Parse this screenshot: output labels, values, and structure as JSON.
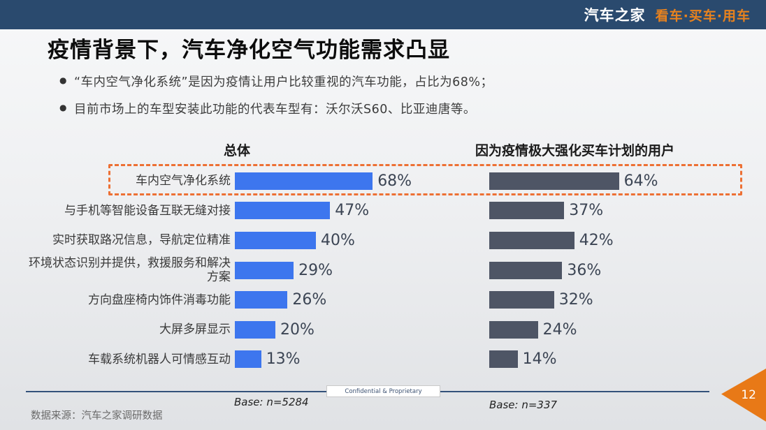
{
  "header": {
    "brand": "汽车之家",
    "tagline": "看车·买车·用车",
    "bar_color": "#2a4a6e",
    "accent_color": "#e8821e"
  },
  "title": "疫情背景下，汽车净化空气功能需求凸显",
  "bullets": [
    "“车内空气净化系统”是因为疫情让用户比较重视的汽车功能，占比为68%；",
    "目前市场上的车型安装此功能的代表车型有：沃尔沃S60、比亚迪唐等。"
  ],
  "chart_data": {
    "type": "bar",
    "orientation": "horizontal",
    "value_suffix": "%",
    "categories": [
      "车内空气净化系统",
      "与手机等智能设备互联无缝对接",
      "实时获取路况信息，导航定位精准",
      "环境状态识别并提供，救援服务和解决方案",
      "方向盘座椅内饰件消毒功能",
      "大屏多屏显示",
      "车载系统机器人可情感互动"
    ],
    "series": [
      {
        "name": "总体",
        "values": [
          68,
          47,
          40,
          29,
          26,
          20,
          13
        ],
        "color": "#3d76ee",
        "base": "Base: n=5284"
      },
      {
        "name": "因为疫情极大强化买车计划的用户",
        "values": [
          64,
          37,
          42,
          36,
          32,
          24,
          14
        ],
        "color": "#4e5565",
        "base": "Base: n=337"
      }
    ],
    "highlighted_category": "车内空气净化系统",
    "highlight_color": "#ed7034",
    "legend_position": "none",
    "grid": false
  },
  "footer": {
    "confidential": "Confidential & Proprietary",
    "source": "数据来源：汽车之家调研数据",
    "page": "12"
  }
}
